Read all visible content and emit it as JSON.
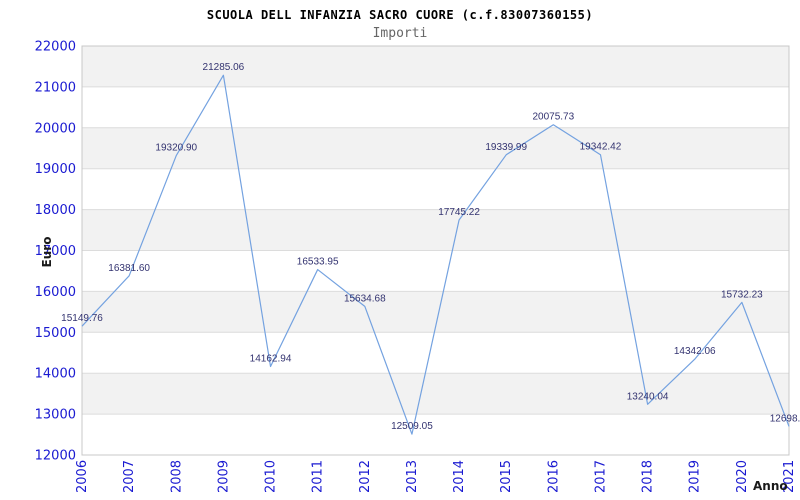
{
  "chart_data": {
    "type": "line",
    "title": "SCUOLA DELL INFANZIA SACRO CUORE (c.f.83007360155)",
    "subtitle": "Importi",
    "xlabel": "Anno",
    "ylabel": "Euro",
    "categories": [
      "2006",
      "2007",
      "2008",
      "2009",
      "2010",
      "2011",
      "2012",
      "2013",
      "2014",
      "2015",
      "2016",
      "2017",
      "2018",
      "2019",
      "2020",
      "2021"
    ],
    "series": [
      {
        "name": "Importi",
        "values": [
          15149.76,
          16381.6,
          19320.9,
          21285.06,
          14162.94,
          16533.95,
          15634.68,
          12509.05,
          17745.22,
          19339.99,
          20075.73,
          19342.42,
          13240.04,
          14342.06,
          15732.23,
          12698
        ]
      }
    ],
    "point_labels": [
      "15149.76",
      "16381.60",
      "19320.90",
      "21285.06",
      "14162.94",
      "16533.95",
      "15634.68",
      "12509.05",
      "17745.22",
      "19339.99",
      "20075.73",
      "19342.42",
      "13240.04",
      "14342.06",
      "15732.23",
      "12698."
    ],
    "ylim": [
      12000,
      22000
    ],
    "ytick_step": 1000,
    "ytick_labels": [
      "12000",
      "13000",
      "14000",
      "15000",
      "16000",
      "17000",
      "18000",
      "19000",
      "20000",
      "21000",
      "22000"
    ],
    "grid": "horizontal-bands",
    "legend": "none",
    "colors": {
      "line": "#74a2e0",
      "tick_label": "#1a1ad1",
      "point_label": "#333370",
      "band_a": "#f2f2f2",
      "band_b": "#ffffff",
      "gridline": "#dcdcdc",
      "plot_border": "#c8c8c8",
      "title": "#000000",
      "subtitle": "#666666",
      "axis_title": "#1a1a1a",
      "background": "#ffffff"
    }
  }
}
